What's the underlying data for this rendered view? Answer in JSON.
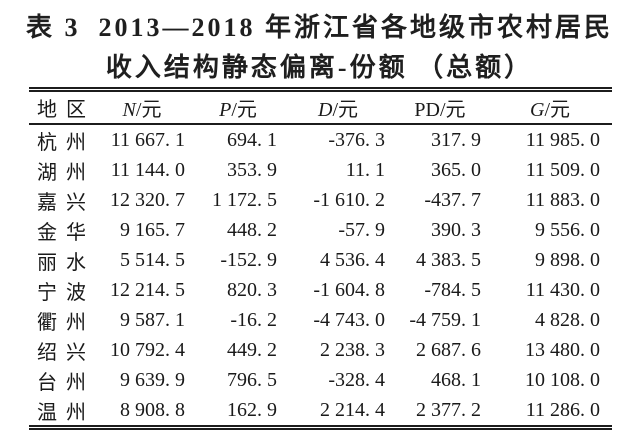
{
  "title": {
    "label": "表 3",
    "line1": "2013—2018 年浙江省各地级市农村居民",
    "line2": "收入结构静态偏离-份额 （总额）"
  },
  "table": {
    "columns": [
      {
        "key": "region",
        "symbol": "地区",
        "unit": "",
        "italic": false
      },
      {
        "key": "N",
        "symbol": "N",
        "unit": "/元",
        "italic": true
      },
      {
        "key": "P",
        "symbol": "P",
        "unit": "/元",
        "italic": true
      },
      {
        "key": "D",
        "symbol": "D",
        "unit": "/元",
        "italic": true
      },
      {
        "key": "PD",
        "symbol": "PD",
        "unit": "/元",
        "italic": false
      },
      {
        "key": "G",
        "symbol": "G",
        "unit": "/元",
        "italic": true
      }
    ],
    "rows": [
      {
        "region": "杭州",
        "values": [
          "11 667. 1",
          "694. 1",
          "-376. 3",
          "317. 9",
          "11 985. 0"
        ]
      },
      {
        "region": "湖州",
        "values": [
          "11 144. 0",
          "353. 9",
          "11. 1",
          "365. 0",
          "11 509. 0"
        ]
      },
      {
        "region": "嘉兴",
        "values": [
          "12 320. 7",
          "1 172. 5",
          "-1 610. 2",
          "-437. 7",
          "11 883. 0"
        ]
      },
      {
        "region": "金华",
        "values": [
          "9 165. 7",
          "448. 2",
          "-57. 9",
          "390. 3",
          "9 556. 0"
        ]
      },
      {
        "region": "丽水",
        "values": [
          "5 514. 5",
          "-152. 9",
          "4 536. 4",
          "4 383. 5",
          "9 898. 0"
        ]
      },
      {
        "region": "宁波",
        "values": [
          "12 214. 5",
          "820. 3",
          "-1 604. 8",
          "-784. 5",
          "11 430. 0"
        ]
      },
      {
        "region": "衢州",
        "values": [
          "9 587. 1",
          "-16. 2",
          "-4 743. 0",
          "-4 759. 1",
          "4 828. 0"
        ]
      },
      {
        "region": "绍兴",
        "values": [
          "10 792. 4",
          "449. 2",
          "2 238. 3",
          "2 687. 6",
          "13 480. 0"
        ]
      },
      {
        "region": "台州",
        "values": [
          "9 639. 9",
          "796. 5",
          "-328. 4",
          "468. 1",
          "10 108. 0"
        ]
      },
      {
        "region": "温州",
        "values": [
          "8 908. 8",
          "162. 9",
          "2 214. 4",
          "2 377. 2",
          "11 286. 0"
        ]
      }
    ]
  },
  "colors": {
    "background": "#ffffff",
    "ink": "#1a1a1a",
    "rule": "#1c1c1c"
  }
}
